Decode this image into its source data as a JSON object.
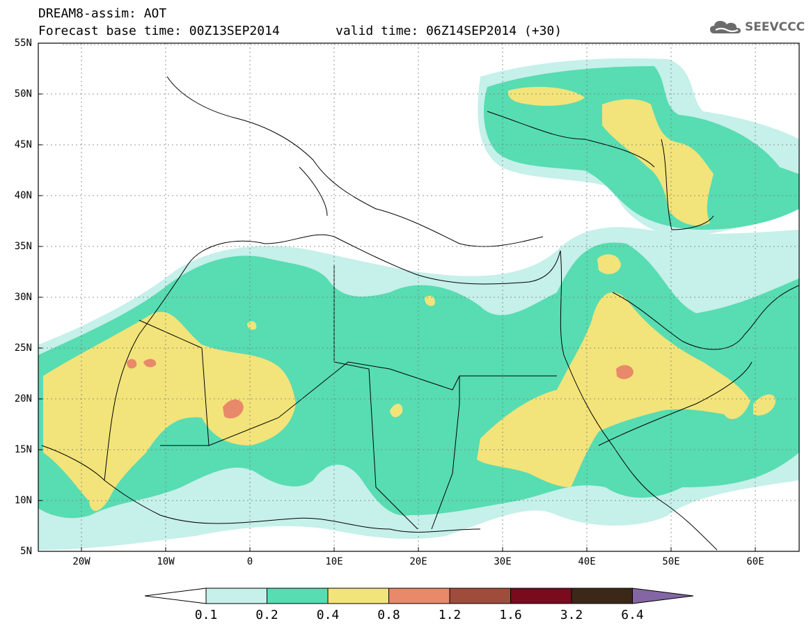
{
  "header": {
    "line1": "DREAM8-assim: AOT",
    "line2": "Forecast base time: 00Z13SEP2014",
    "line3": "valid time: 06Z14SEP2014 (+30)"
  },
  "logo": {
    "text": "SEEVCCC",
    "icon": "cloud-icon"
  },
  "map": {
    "lat_labels": [
      "55N",
      "50N",
      "45N",
      "40N",
      "35N",
      "30N",
      "25N",
      "20N",
      "15N",
      "10N",
      "5N"
    ],
    "lon_labels": [
      "20W",
      "10W",
      "0",
      "10E",
      "20E",
      "30E",
      "40E",
      "50E",
      "60E"
    ]
  },
  "colorbar": {
    "labels": [
      "0.1",
      "0.2",
      "0.4",
      "0.8",
      "1.2",
      "1.6",
      "3.2",
      "6.4"
    ],
    "colors": [
      "#c6f0ea",
      "#58dcb2",
      "#f2e47a",
      "#e8896a",
      "#a04c3c",
      "#7a0a1e",
      "#3c2818",
      "#8466a4"
    ]
  }
}
